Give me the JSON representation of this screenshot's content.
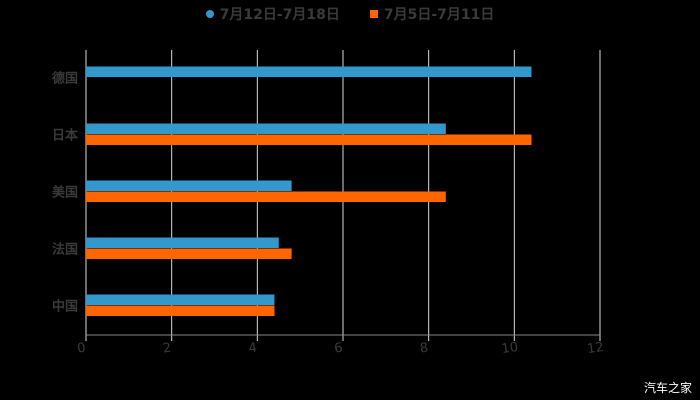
{
  "chart_data": {
    "type": "bar",
    "orientation": "horizontal",
    "title": "",
    "xlabel": "",
    "ylabel": "",
    "categories": [
      "德国",
      "日本",
      "美国",
      "法国",
      "中国"
    ],
    "series": [
      {
        "name": "7月12日-7月18日",
        "color": "#3399cc",
        "values": [
          10.4,
          8.4,
          4.8,
          4.5,
          4.4
        ]
      },
      {
        "name": "7月5日-7月11日",
        "color": "#ff6600",
        "values": [
          null,
          10.4,
          8.4,
          4.8,
          4.4
        ]
      }
    ],
    "xlim": [
      0,
      12
    ],
    "xticks": [
      "0",
      "2",
      "4",
      "6",
      "8",
      "10",
      "12"
    ],
    "grid": true,
    "legend_position": "top"
  },
  "watermark": "汽车之家"
}
